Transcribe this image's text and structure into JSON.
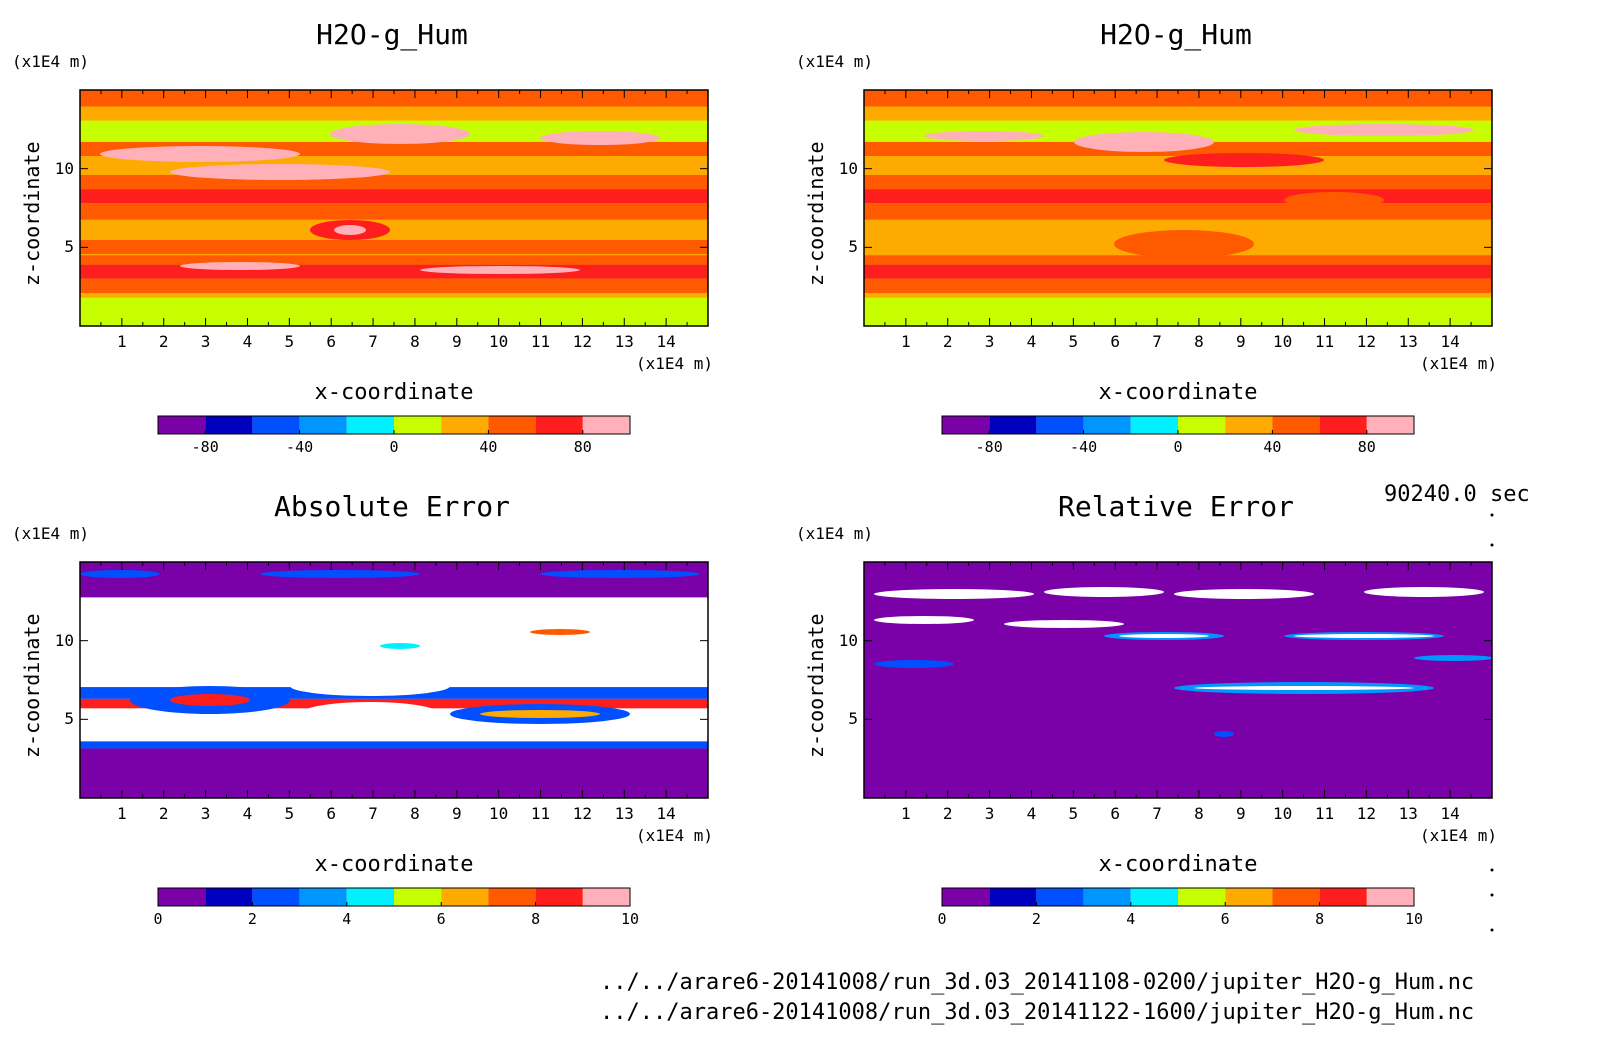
{
  "time_label": "90240.0 sec",
  "footer_lines": [
    "../../arare6-20141008/run_3d.03_20141108-0200/jupiter_H2O-g_Hum.nc",
    "../../arare6-20141008/run_3d.03_20141122-1600/jupiter_H2O-g_Hum.nc"
  ],
  "colors": {
    "palette": [
      "#7a00a8",
      "#0000c0",
      "#0050ff",
      "#0096ff",
      "#00f0ff",
      "#c8ff00",
      "#ffaa00",
      "#ff5a00",
      "#ff1e1e",
      "#ffb0b8"
    ],
    "white": "#ffffff"
  },
  "chart_data": [
    {
      "type": "heatmap",
      "title": "H2O-g_Hum",
      "xlabel": "x-coordinate",
      "ylabel": "z-coordinate",
      "x_unit": "(x1E4 m)",
      "y_unit": "(x1E4 m)",
      "xlim": [
        0,
        15
      ],
      "ylim": [
        0,
        15
      ],
      "x_ticks": [
        "1",
        "2",
        "3",
        "4",
        "5",
        "6",
        "7",
        "8",
        "9",
        "10",
        "11",
        "12",
        "13",
        "14"
      ],
      "y_ticks": [
        "5",
        "10"
      ],
      "colorbar": {
        "min": -100,
        "max": 100,
        "labels": [
          "-80",
          "-40",
          "0",
          "40",
          "80"
        ]
      }
    },
    {
      "type": "heatmap",
      "title": "H2O-g_Hum",
      "xlabel": "x-coordinate",
      "ylabel": "z-coordinate",
      "x_unit": "(x1E4 m)",
      "y_unit": "(x1E4 m)",
      "xlim": [
        0,
        15
      ],
      "ylim": [
        0,
        15
      ],
      "x_ticks": [
        "1",
        "2",
        "3",
        "4",
        "5",
        "6",
        "7",
        "8",
        "9",
        "10",
        "11",
        "12",
        "13",
        "14"
      ],
      "y_ticks": [
        "5",
        "10"
      ],
      "colorbar": {
        "min": -100,
        "max": 100,
        "labels": [
          "-80",
          "-40",
          "0",
          "40",
          "80"
        ]
      }
    },
    {
      "type": "heatmap",
      "title": "Absolute Error",
      "xlabel": "x-coordinate",
      "ylabel": "z-coordinate",
      "x_unit": "(x1E4 m)",
      "y_unit": "(x1E4 m)",
      "xlim": [
        0,
        15
      ],
      "ylim": [
        0,
        15
      ],
      "x_ticks": [
        "1",
        "2",
        "3",
        "4",
        "5",
        "6",
        "7",
        "8",
        "9",
        "10",
        "11",
        "12",
        "13",
        "14"
      ],
      "y_ticks": [
        "5",
        "10"
      ],
      "colorbar": {
        "min": 0,
        "max": 10,
        "labels": [
          "0",
          "2",
          "4",
          "6",
          "8",
          "10"
        ]
      }
    },
    {
      "type": "heatmap",
      "title": "Relative Error",
      "xlabel": "x-coordinate",
      "ylabel": "z-coordinate",
      "x_unit": "(x1E4 m)",
      "y_unit": "(x1E4 m)",
      "xlim": [
        0,
        15
      ],
      "ylim": [
        0,
        15
      ],
      "x_ticks": [
        "1",
        "2",
        "3",
        "4",
        "5",
        "6",
        "7",
        "8",
        "9",
        "10",
        "11",
        "12",
        "13",
        "14"
      ],
      "y_ticks": [
        "5",
        "10"
      ],
      "colorbar": {
        "min": 0,
        "max": 10,
        "labels": [
          "0",
          "2",
          "4",
          "6",
          "8",
          "10"
        ]
      }
    }
  ]
}
